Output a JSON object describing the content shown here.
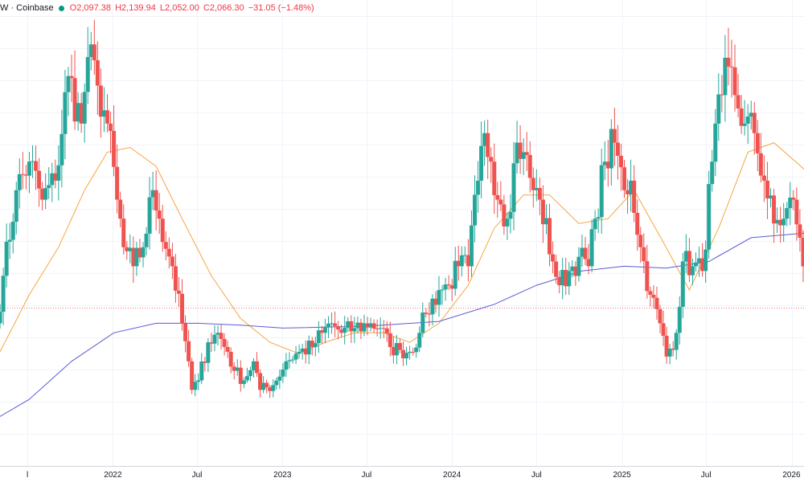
{
  "legend": {
    "symbol_text": "W · Coinbase",
    "status_color": "#089981",
    "open": "O2,097.38",
    "high": "H2,139.94",
    "low": "L2,052.00",
    "close": "C2,066.30",
    "change": "−31.05 (−1.48%)"
  },
  "colors": {
    "up": "#26a69a",
    "down": "#ef5350",
    "ma_short": "#f7a541",
    "ma_long": "#5b5bd6",
    "grid": "#f0f3fa",
    "axis_text": "#131722",
    "last_price_line": "#ef5350"
  },
  "chart_data": {
    "type": "candlestick",
    "interval": "weekly",
    "x_tick_labels": [
      "l",
      "2022",
      "Jul",
      "2023",
      "Jul",
      "2024",
      "Jul",
      "2025",
      "Jul",
      "2026"
    ],
    "x_range": [
      "2021-04-26",
      "2026-02-02"
    ],
    "ylim": [
      400,
      5300
    ],
    "last_close": 2066.3,
    "grid": true,
    "anchors": [
      [
        "2021-04-26",
        1900
      ],
      [
        "2021-05-10",
        2400
      ],
      [
        "2021-06-07",
        3300
      ],
      [
        "2021-07-05",
        3600
      ],
      [
        "2021-08-02",
        3200
      ],
      [
        "2021-08-30",
        3400
      ],
      [
        "2021-09-27",
        4500
      ],
      [
        "2021-10-25",
        4000
      ],
      [
        "2021-11-08",
        4700
      ],
      [
        "2021-11-29",
        4400
      ],
      [
        "2021-12-20",
        4000
      ],
      [
        "2022-01-10",
        3200
      ],
      [
        "2022-01-24",
        2700
      ],
      [
        "2022-02-14",
        2500
      ],
      [
        "2022-03-07",
        2700
      ],
      [
        "2022-03-28",
        3300
      ],
      [
        "2022-04-11",
        3000
      ],
      [
        "2022-05-09",
        2500
      ],
      [
        "2022-05-30",
        1900
      ],
      [
        "2022-06-13",
        1500
      ],
      [
        "2022-06-20",
        1200
      ],
      [
        "2022-07-04",
        1300
      ],
      [
        "2022-07-25",
        1700
      ],
      [
        "2022-08-15",
        1800
      ],
      [
        "2022-09-05",
        1600
      ],
      [
        "2022-09-19",
        1400
      ],
      [
        "2022-10-10",
        1300
      ],
      [
        "2022-10-31",
        1500
      ],
      [
        "2022-11-14",
        1200
      ],
      [
        "2022-12-12",
        1250
      ],
      [
        "2023-01-09",
        1500
      ],
      [
        "2023-02-06",
        1600
      ],
      [
        "2023-03-06",
        1650
      ],
      [
        "2023-03-27",
        1800
      ],
      [
        "2023-04-17",
        1900
      ],
      [
        "2023-05-08",
        1800
      ],
      [
        "2023-06-05",
        1850
      ],
      [
        "2023-07-10",
        1900
      ],
      [
        "2023-07-31",
        1850
      ],
      [
        "2023-08-21",
        1650
      ],
      [
        "2023-09-11",
        1620
      ],
      [
        "2023-10-02",
        1600
      ],
      [
        "2023-10-23",
        1800
      ],
      [
        "2023-11-06",
        2000
      ],
      [
        "2023-12-04",
        2250
      ],
      [
        "2023-12-25",
        2300
      ],
      [
        "2024-01-15",
        2500
      ],
      [
        "2024-02-05",
        2500
      ],
      [
        "2024-02-26",
        3400
      ],
      [
        "2024-03-11",
        3900
      ],
      [
        "2024-03-25",
        3600
      ],
      [
        "2024-04-15",
        3150
      ],
      [
        "2024-04-29",
        3000
      ],
      [
        "2024-05-20",
        3800
      ],
      [
        "2024-06-03",
        3700
      ],
      [
        "2024-06-24",
        3300
      ],
      [
        "2024-07-08",
        3200
      ],
      [
        "2024-08-05",
        2550
      ],
      [
        "2024-08-19",
        2300
      ],
      [
        "2024-09-09",
        2450
      ],
      [
        "2024-09-30",
        2600
      ],
      [
        "2024-10-21",
        2500
      ],
      [
        "2024-11-04",
        3000
      ],
      [
        "2024-11-25",
        3600
      ],
      [
        "2024-12-16",
        3800
      ],
      [
        "2025-01-06",
        3300
      ],
      [
        "2025-01-20",
        3400
      ],
      [
        "2025-02-10",
        2700
      ],
      [
        "2025-03-03",
        2200
      ],
      [
        "2025-03-24",
        1900
      ],
      [
        "2025-04-07",
        1550
      ],
      [
        "2025-04-28",
        1800
      ],
      [
        "2025-05-12",
        2550
      ],
      [
        "2025-06-02",
        2500
      ],
      [
        "2025-06-23",
        2450
      ],
      [
        "2025-07-14",
        3600
      ],
      [
        "2025-08-04",
        4300
      ],
      [
        "2025-08-18",
        4600
      ],
      [
        "2025-09-01",
        4300
      ],
      [
        "2025-09-22",
        4000
      ],
      [
        "2025-10-13",
        3900
      ],
      [
        "2025-11-03",
        3400
      ],
      [
        "2025-11-24",
        2950
      ],
      [
        "2025-12-15",
        3000
      ],
      [
        "2026-01-05",
        3200
      ],
      [
        "2026-01-19",
        2800
      ],
      [
        "2026-02-02",
        2066.3
      ]
    ],
    "moving_averages": [
      {
        "length_weeks": 20,
        "color": "#f7a541",
        "values": [
          [
            "2021-05-03",
            1600
          ],
          [
            "2021-07-05",
            2200
          ],
          [
            "2021-09-06",
            2700
          ],
          [
            "2021-11-01",
            3300
          ],
          [
            "2021-12-20",
            3700
          ],
          [
            "2022-02-07",
            3750
          ],
          [
            "2022-04-04",
            3550
          ],
          [
            "2022-05-30",
            3000
          ],
          [
            "2022-08-01",
            2400
          ],
          [
            "2022-10-03",
            1950
          ],
          [
            "2022-12-05",
            1700
          ],
          [
            "2023-02-06",
            1580
          ],
          [
            "2023-04-03",
            1700
          ],
          [
            "2023-06-05",
            1800
          ],
          [
            "2023-08-07",
            1800
          ],
          [
            "2023-10-02",
            1700
          ],
          [
            "2023-12-04",
            1900
          ],
          [
            "2024-02-05",
            2300
          ],
          [
            "2024-04-01",
            2900
          ],
          [
            "2024-06-03",
            3250
          ],
          [
            "2024-07-29",
            3250
          ],
          [
            "2024-09-30",
            2950
          ],
          [
            "2024-12-02",
            3000
          ],
          [
            "2025-01-27",
            3300
          ],
          [
            "2025-03-31",
            2750
          ],
          [
            "2025-05-26",
            2250
          ],
          [
            "2025-07-28",
            2900
          ],
          [
            "2025-09-29",
            3700
          ],
          [
            "2025-11-24",
            3800
          ],
          [
            "2026-02-02",
            3500
          ]
        ]
      },
      {
        "length_weeks": 100,
        "color": "#5b5bd6",
        "values": [
          [
            "2021-04-26",
            900
          ],
          [
            "2021-07-05",
            1100
          ],
          [
            "2021-10-04",
            1500
          ],
          [
            "2022-01-03",
            1800
          ],
          [
            "2022-04-04",
            1900
          ],
          [
            "2022-07-04",
            1900
          ],
          [
            "2022-10-03",
            1880
          ],
          [
            "2023-01-02",
            1850
          ],
          [
            "2023-07-03",
            1870
          ],
          [
            "2023-12-04",
            1920
          ],
          [
            "2024-04-01",
            2100
          ],
          [
            "2024-07-01",
            2300
          ],
          [
            "2024-10-07",
            2450
          ],
          [
            "2025-01-06",
            2500
          ],
          [
            "2025-04-07",
            2480
          ],
          [
            "2025-07-07",
            2550
          ],
          [
            "2025-10-06",
            2800
          ],
          [
            "2026-02-02",
            2850
          ]
        ]
      }
    ]
  }
}
